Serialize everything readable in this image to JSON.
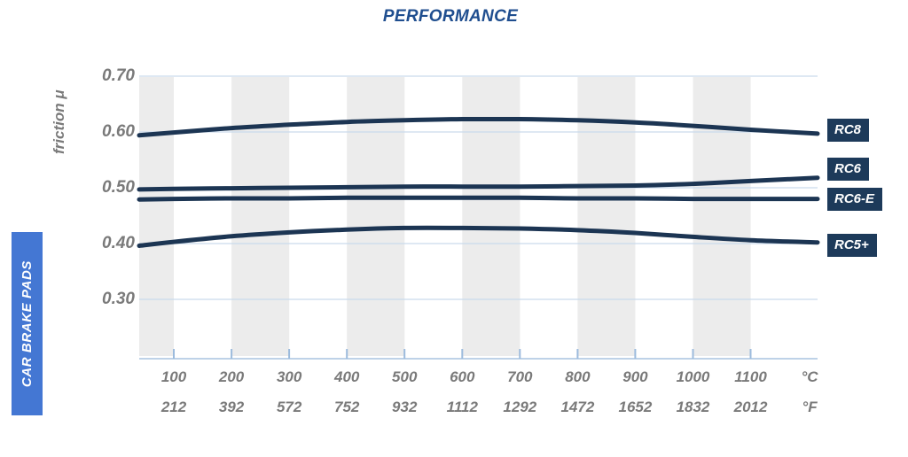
{
  "title": "PERFORMANCE",
  "side_label": "CAR BRAKE PADS",
  "colors": {
    "title_blue": "#1f4e8f",
    "side_banner_blue": "#4477d3",
    "curve_navy": "#1c3553",
    "series_label_bg": "#1d3a5a",
    "series_label_text": "#ffffff",
    "tick_text_gray": "#7a7a7a",
    "band_gray": "#ececec",
    "gridline_blue": "#c9daec",
    "axis_blue": "#a8c4e1",
    "tick_mark_blue": "#9cbbdd"
  },
  "chart_data": {
    "type": "line",
    "title": "PERFORMANCE",
    "ylabel": "friction μ",
    "grid": true,
    "legend_position": "right-edge-labels",
    "x_axis": {
      "unit_primary": "°C",
      "unit_secondary": "°F",
      "ticks_c": [
        100,
        200,
        300,
        400,
        500,
        600,
        700,
        800,
        900,
        1000,
        1100
      ],
      "ticks_f": [
        212,
        392,
        572,
        752,
        932,
        1112,
        1292,
        1472,
        1652,
        1832,
        2012
      ],
      "range_c": [
        40,
        1216
      ]
    },
    "y_axis": {
      "tick_labels": [
        "0.70",
        "0.60",
        "0.50",
        "0.40",
        "0.30"
      ],
      "ylim": [
        0.19,
        0.7
      ]
    },
    "background_bands_c": [
      [
        40,
        100
      ],
      [
        200,
        300
      ],
      [
        400,
        500
      ],
      [
        600,
        700
      ],
      [
        800,
        900
      ],
      [
        1000,
        1100
      ]
    ],
    "series": [
      {
        "name": "RC8",
        "points": [
          [
            40,
            0.594
          ],
          [
            100,
            0.599
          ],
          [
            200,
            0.607
          ],
          [
            300,
            0.613
          ],
          [
            400,
            0.618
          ],
          [
            500,
            0.621
          ],
          [
            600,
            0.623
          ],
          [
            700,
            0.623
          ],
          [
            800,
            0.621
          ],
          [
            900,
            0.617
          ],
          [
            1000,
            0.611
          ],
          [
            1100,
            0.604
          ],
          [
            1216,
            0.597
          ]
        ]
      },
      {
        "name": "RC6",
        "points": [
          [
            40,
            0.497
          ],
          [
            100,
            0.498
          ],
          [
            200,
            0.499
          ],
          [
            300,
            0.5
          ],
          [
            400,
            0.501
          ],
          [
            500,
            0.502
          ],
          [
            600,
            0.502
          ],
          [
            700,
            0.502
          ],
          [
            800,
            0.503
          ],
          [
            900,
            0.504
          ],
          [
            1000,
            0.507
          ],
          [
            1100,
            0.512
          ],
          [
            1216,
            0.518
          ]
        ]
      },
      {
        "name": "RC6-E",
        "points": [
          [
            40,
            0.479
          ],
          [
            100,
            0.48
          ],
          [
            200,
            0.481
          ],
          [
            300,
            0.481
          ],
          [
            400,
            0.482
          ],
          [
            500,
            0.482
          ],
          [
            600,
            0.482
          ],
          [
            700,
            0.482
          ],
          [
            800,
            0.481
          ],
          [
            900,
            0.481
          ],
          [
            1000,
            0.48
          ],
          [
            1100,
            0.48
          ],
          [
            1216,
            0.48
          ]
        ]
      },
      {
        "name": "RC5+",
        "points": [
          [
            40,
            0.396
          ],
          [
            100,
            0.403
          ],
          [
            200,
            0.413
          ],
          [
            300,
            0.42
          ],
          [
            400,
            0.425
          ],
          [
            500,
            0.428
          ],
          [
            600,
            0.428
          ],
          [
            700,
            0.427
          ],
          [
            800,
            0.424
          ],
          [
            900,
            0.419
          ],
          [
            1000,
            0.412
          ],
          [
            1100,
            0.406
          ],
          [
            1216,
            0.402
          ]
        ]
      }
    ]
  }
}
